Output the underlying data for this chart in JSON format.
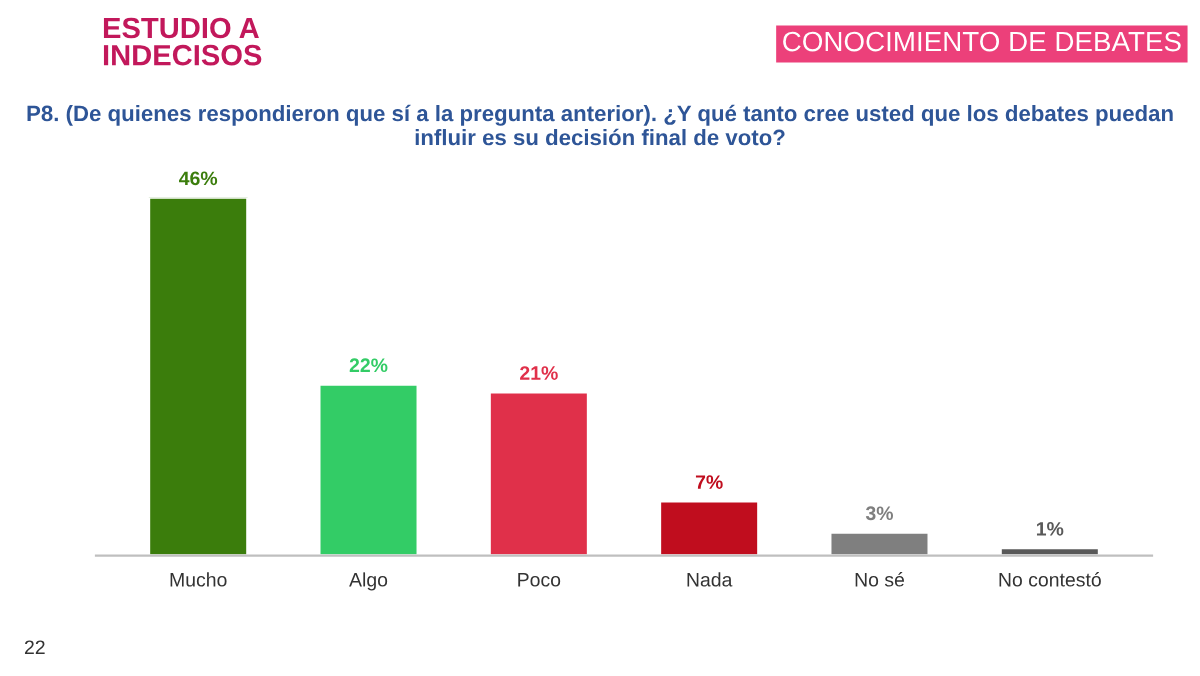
{
  "chart_data": {
    "type": "bar",
    "title": "ESTUDIO A\nINDECISOS",
    "subtitle": "P8. (De quienes respondieron que sí a la pregunta anterior). ¿Y qué tanto cree usted que los debates puedan influir es su decisión final de voto?",
    "annotations": [
      "CONOCIMIENTO DE DEBATES",
      "22"
    ],
    "categories": [
      "Mucho",
      "Algo",
      "Poco",
      "Nada",
      "No sé",
      "No contestó"
    ],
    "values": [
      46,
      22,
      21,
      7,
      3,
      1
    ],
    "value_labels": [
      "46%",
      "22%",
      "21%",
      "7%",
      "3%",
      "1%"
    ],
    "colors": [
      "#3b7d0c",
      "#33cc66",
      "#e0304a",
      "#c00d1e",
      "#7f7f7f",
      "#595959"
    ],
    "grid": false,
    "legend": false
  }
}
